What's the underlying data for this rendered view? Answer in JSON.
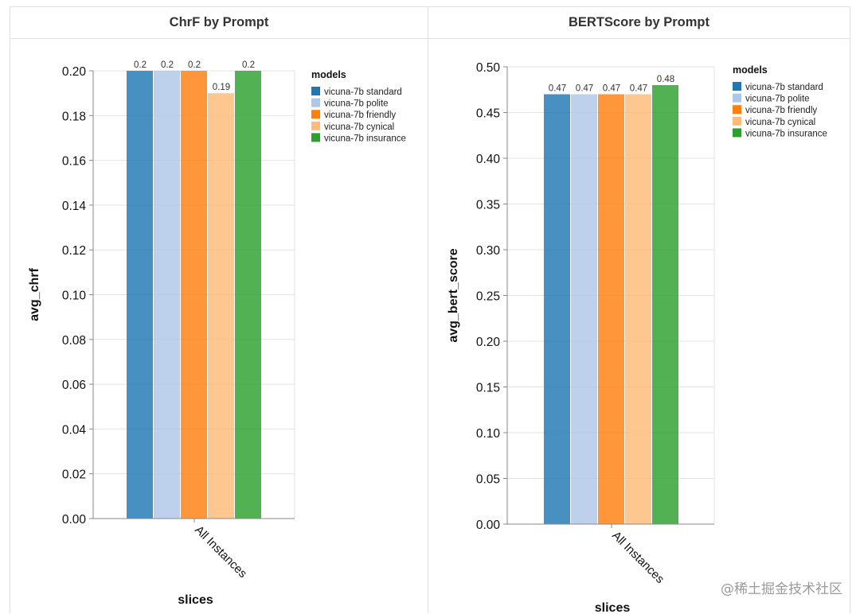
{
  "chart_data": [
    {
      "type": "bar",
      "title": "ChrF by Prompt",
      "xlabel": "slices",
      "ylabel": "avg_chrf",
      "categories": [
        "All Instances"
      ],
      "ylim": [
        0,
        0.2
      ],
      "yticks": [
        "0.00",
        "0.02",
        "0.04",
        "0.06",
        "0.08",
        "0.10",
        "0.12",
        "0.14",
        "0.16",
        "0.18",
        "0.20"
      ],
      "legend_title": "models",
      "legend_position": "top-right",
      "series": [
        {
          "name": "vicuna-7b standard",
          "values": [
            0.2
          ],
          "label": "0.2",
          "color": "#1f77b4"
        },
        {
          "name": "vicuna-7b polite",
          "values": [
            0.2
          ],
          "label": "0.2",
          "color": "#aec7e8"
        },
        {
          "name": "vicuna-7b friendly",
          "values": [
            0.2
          ],
          "label": "0.2",
          "color": "#ff7f0e"
        },
        {
          "name": "vicuna-7b cynical",
          "values": [
            0.19
          ],
          "label": "0.19",
          "color": "#ffbb78"
        },
        {
          "name": "vicuna-7b insurance",
          "values": [
            0.2
          ],
          "label": "0.2",
          "color": "#2ca02c"
        }
      ]
    },
    {
      "type": "bar",
      "title": "BERTScore by Prompt",
      "xlabel": "slices",
      "ylabel": "avg_bert_score",
      "categories": [
        "All Instances"
      ],
      "ylim": [
        0,
        0.5
      ],
      "yticks": [
        "0.00",
        "0.05",
        "0.10",
        "0.15",
        "0.20",
        "0.25",
        "0.30",
        "0.35",
        "0.40",
        "0.45",
        "0.50"
      ],
      "legend_title": "models",
      "legend_position": "top-right",
      "series": [
        {
          "name": "vicuna-7b standard",
          "values": [
            0.47
          ],
          "label": "0.47",
          "color": "#1f77b4"
        },
        {
          "name": "vicuna-7b polite",
          "values": [
            0.47
          ],
          "label": "0.47",
          "color": "#aec7e8"
        },
        {
          "name": "vicuna-7b friendly",
          "values": [
            0.47
          ],
          "label": "0.47",
          "color": "#ff7f0e"
        },
        {
          "name": "vicuna-7b cynical",
          "values": [
            0.47
          ],
          "label": "0.47",
          "color": "#ffbb78"
        },
        {
          "name": "vicuna-7b insurance",
          "values": [
            0.48
          ],
          "label": "0.48",
          "color": "#2ca02c"
        }
      ]
    }
  ],
  "watermark": "@稀土掘金技术社区"
}
